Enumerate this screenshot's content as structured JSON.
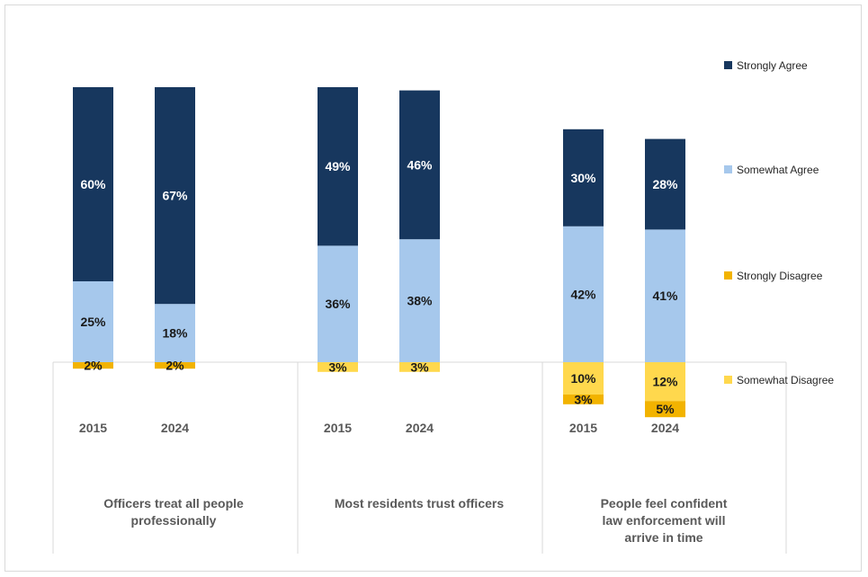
{
  "chart_data": {
    "type": "bar",
    "stacked": true,
    "diverging": true,
    "groups": [
      {
        "label": "Officers treat all people professionally",
        "label_lines": [
          "Officers treat all people",
          "professionally"
        ],
        "years": [
          {
            "year": "2015",
            "strongly_agree": 60,
            "somewhat_agree": 25,
            "somewhat_disagree": 0,
            "strongly_disagree": 2,
            "labels": {
              "strongly_agree": "60%",
              "somewhat_agree": "25%",
              "somewhat_disagree": "",
              "strongly_disagree": "2%"
            }
          },
          {
            "year": "2024",
            "strongly_agree": 67,
            "somewhat_agree": 18,
            "somewhat_disagree": 0,
            "strongly_disagree": 2,
            "labels": {
              "strongly_agree": "67%",
              "somewhat_agree": "18%",
              "somewhat_disagree": "",
              "strongly_disagree": "2%"
            }
          }
        ]
      },
      {
        "label": "Most residents trust officers",
        "label_lines": [
          "Most residents trust officers"
        ],
        "years": [
          {
            "year": "2015",
            "strongly_agree": 49,
            "somewhat_agree": 36,
            "somewhat_disagree": 3,
            "strongly_disagree": 0,
            "labels": {
              "strongly_agree": "49%",
              "somewhat_agree": "36%",
              "somewhat_disagree": "3%",
              "strongly_disagree": ""
            }
          },
          {
            "year": "2024",
            "strongly_agree": 46,
            "somewhat_agree": 38,
            "somewhat_disagree": 3,
            "strongly_disagree": 0,
            "labels": {
              "strongly_agree": "46%",
              "somewhat_agree": "38%",
              "somewhat_disagree": "3%",
              "strongly_disagree": ""
            }
          }
        ]
      },
      {
        "label": "People feel confident law enforcement will arrive in time",
        "label_lines": [
          "People feel confident",
          "law enforcement will",
          "arrive in time"
        ],
        "years": [
          {
            "year": "2015",
            "strongly_agree": 30,
            "somewhat_agree": 42,
            "somewhat_disagree": 10,
            "strongly_disagree": 3,
            "labels": {
              "strongly_agree": "30%",
              "somewhat_agree": "42%",
              "somewhat_disagree": "10%",
              "strongly_disagree": "3%"
            }
          },
          {
            "year": "2024",
            "strongly_agree": 28,
            "somewhat_agree": 41,
            "somewhat_disagree": 12,
            "strongly_disagree": 5,
            "labels": {
              "strongly_agree": "28%",
              "somewhat_agree": "41%",
              "somewhat_disagree": "12%",
              "strongly_disagree": "5%"
            }
          }
        ]
      }
    ],
    "legend": [
      {
        "key": "strongly_agree",
        "name": "Strongly Agree",
        "color": "#17375e"
      },
      {
        "key": "somewhat_agree",
        "name": "Somewhat Agree",
        "color": "#a6c8ec"
      },
      {
        "key": "strongly_disagree",
        "name": "Strongly Disagree",
        "color": "#f2b300"
      },
      {
        "key": "somewhat_disagree",
        "name": "Somewhat Disagree",
        "color": "#ffd84d"
      }
    ],
    "legend_position": "right",
    "label_colors": {
      "strongly_agree": "#ffffff",
      "somewhat_agree": "#1a1a1a",
      "somewhat_disagree": "#1a1a1a",
      "strongly_disagree": "#1a1a1a"
    },
    "grid": false
  }
}
